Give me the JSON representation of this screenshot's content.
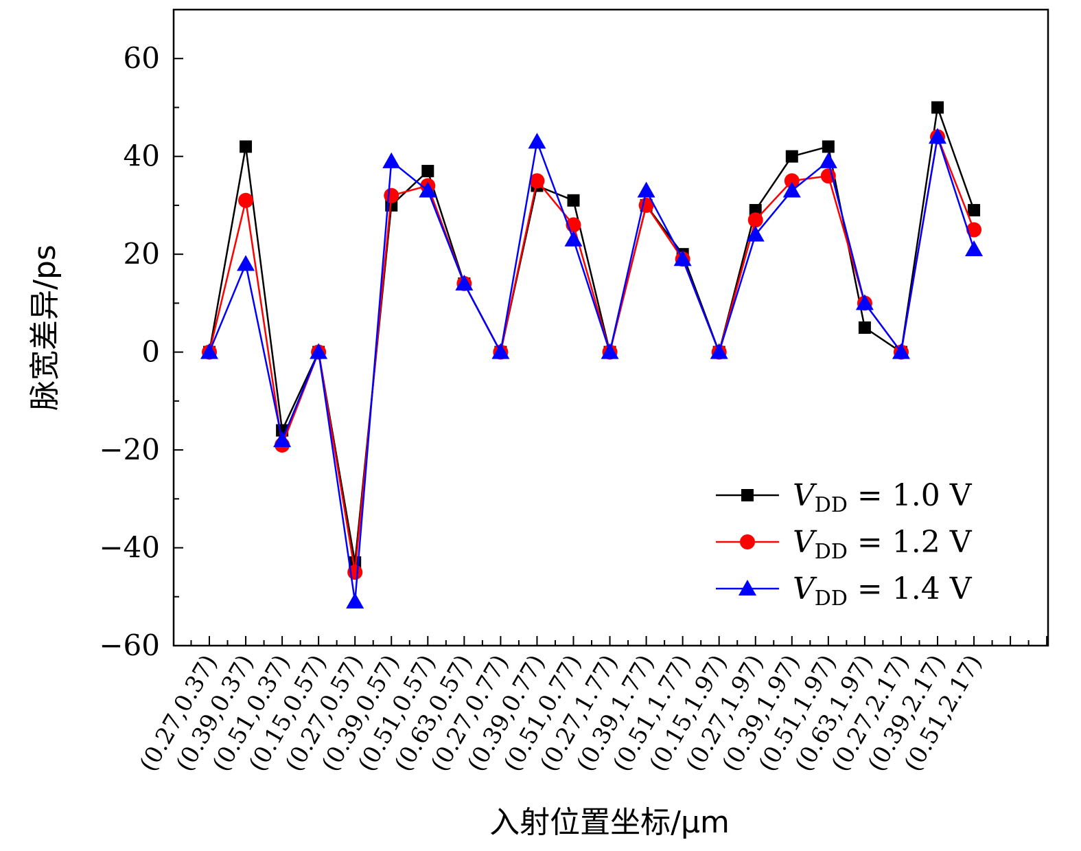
{
  "chart_data": {
    "type": "line",
    "title": "",
    "xlabel": "入射位置坐标/μm",
    "ylabel": "脉宽差异/ps",
    "ylim": [
      -60,
      70
    ],
    "yticks": [
      "60",
      "40",
      "20",
      "0",
      "−20",
      "−40",
      "−60"
    ],
    "ytick_values": [
      60,
      40,
      20,
      0,
      -20,
      -40,
      -60
    ],
    "grid": false,
    "legend_position": "bottom-right",
    "categories": [
      "(0.27,0.37)",
      "(0.39,0.37)",
      "(0.51,0.37)",
      "(0.15,0.57)",
      "(0.27,0.57)",
      "(0.39,0.57)",
      "(0.51,0.57)",
      "(0.63,0.57)",
      "(0.27,0.77)",
      "(0.39,0.77)",
      "(0.51,0.77)",
      "(0.27,1.77)",
      "(0.39,1.77)",
      "(0.51,1.77)",
      "(0.15,1.97)",
      "(0.27,1.97)",
      "(0.39,1.97)",
      "(0.51,1.97)",
      "(0.63,1.97)",
      "(0.27,2.17)",
      "(0.39,2.17)",
      "(0.51,2.17)"
    ],
    "series": [
      {
        "name": "V",
        "name_sub": "DD",
        "name_rest": " = 1.0 V",
        "color": "#000000",
        "marker": "square",
        "values": [
          0,
          42,
          -16,
          0,
          -43,
          30,
          37,
          14,
          0,
          34,
          31,
          0,
          30,
          20,
          0,
          29,
          40,
          42,
          5,
          0,
          50,
          29
        ]
      },
      {
        "name": "V",
        "name_sub": "DD",
        "name_rest": " = 1.2 V",
        "color": "#ff0000",
        "marker": "circle",
        "values": [
          0,
          31,
          -19,
          0,
          -45,
          32,
          34,
          14,
          0,
          35,
          26,
          0,
          30,
          19,
          0,
          27,
          35,
          36,
          10,
          0,
          44,
          25
        ]
      },
      {
        "name": "V",
        "name_sub": "DD",
        "name_rest": " = 1.4 V",
        "color": "#0000ff",
        "marker": "triangle",
        "values": [
          0,
          18,
          -18,
          0,
          -51,
          39,
          33,
          14,
          0,
          43,
          23,
          0,
          33,
          19,
          0,
          24,
          33,
          39,
          10,
          0,
          44,
          21
        ]
      }
    ]
  }
}
